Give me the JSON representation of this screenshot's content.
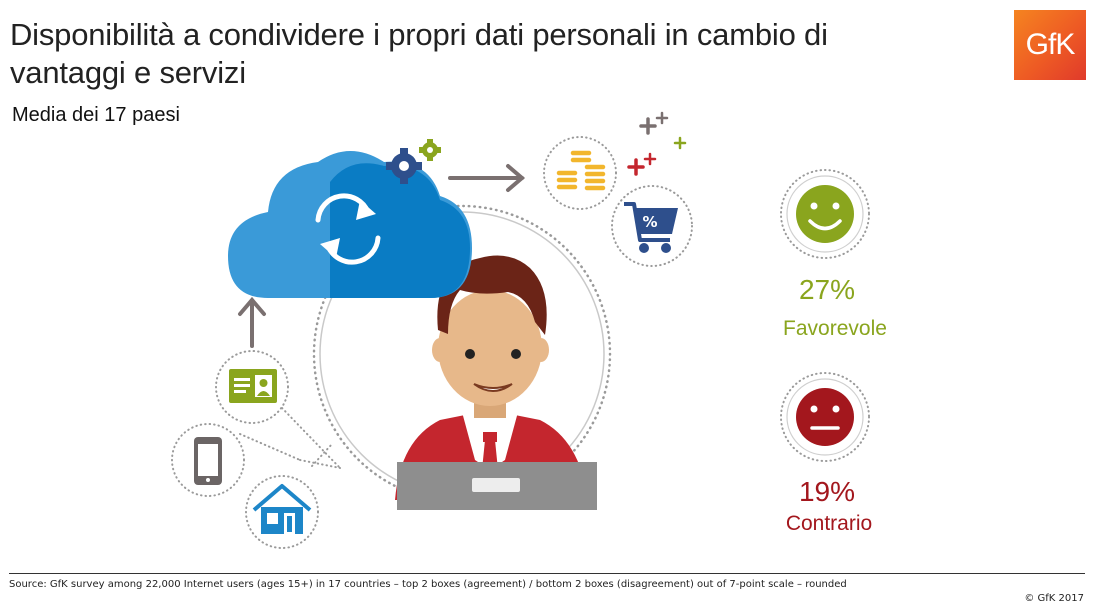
{
  "header": {
    "title": "Disponibilità a condividere i propri dati personali in cambio di vantaggi e servizi",
    "subtitle": "Media dei 17 paesi",
    "logo_text": "GfK"
  },
  "stats": [
    {
      "percent": "27%",
      "label": "Favorevole",
      "color": "#8aa51e",
      "face": "smiley-icon"
    },
    {
      "percent": "19%",
      "label": "Contrario",
      "color": "#a3171d",
      "face": "neutral-face-icon"
    }
  ],
  "footer": {
    "source": "Source: GfK survey among 22,000 Internet users (ages 15+) in 17 countries –  top 2 boxes (agreement) / bottom 2 boxes (disagreement) out of 7-point scale – rounded",
    "copyright": "© GfK 2017"
  },
  "colors": {
    "cloud": "#0a7cc4",
    "cloud_light": "#3a9ad8",
    "gfk_orange": "#ee5b24",
    "green": "#8aa51e",
    "red": "#a3171d"
  }
}
